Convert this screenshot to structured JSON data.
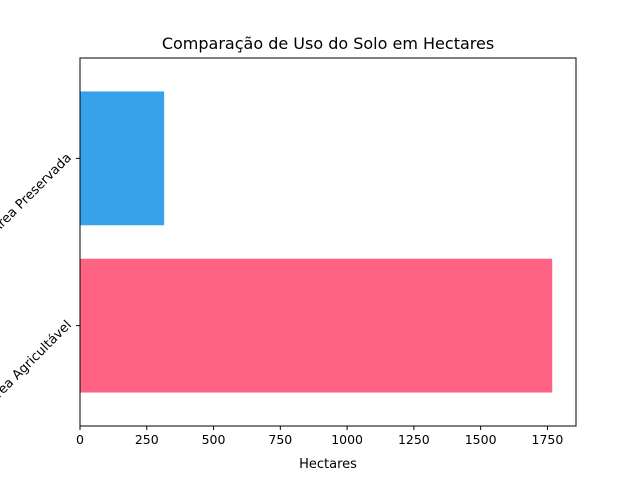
{
  "chart_data": {
    "type": "bar",
    "orientation": "horizontal",
    "title": "Comparação de Uso do Solo em Hectares",
    "xlabel": "Hectares",
    "ylabel": "",
    "categories": [
      "Área Agricultável",
      "Área Preservada"
    ],
    "values": [
      1768,
      315
    ],
    "colors": [
      "#ff6384",
      "#36a2eb"
    ],
    "xlim": [
      0,
      1857
    ],
    "xticks": [
      0,
      250,
      500,
      750,
      1000,
      1250,
      1500,
      1750
    ],
    "grid": false
  }
}
